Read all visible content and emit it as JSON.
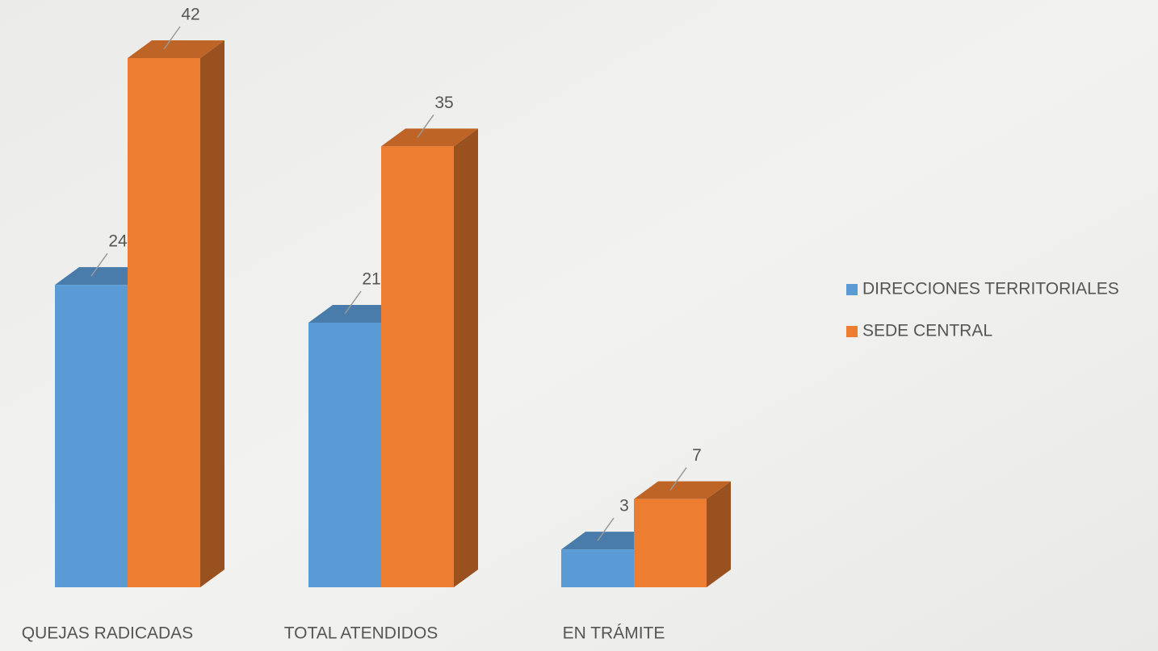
{
  "chart_data": {
    "type": "bar3d",
    "categories": [
      "QUEJAS RADICADAS",
      "TOTAL ATENDIDOS",
      "EN TRÁMITE"
    ],
    "series": [
      {
        "name": "DIRECCIONES TERRITORIALES",
        "color": "#5b9bd5",
        "values": [
          24,
          21,
          3
        ]
      },
      {
        "name": "SEDE CENTRAL",
        "color": "#ed7d31",
        "values": [
          42,
          35,
          7
        ]
      }
    ],
    "legend": "right"
  }
}
